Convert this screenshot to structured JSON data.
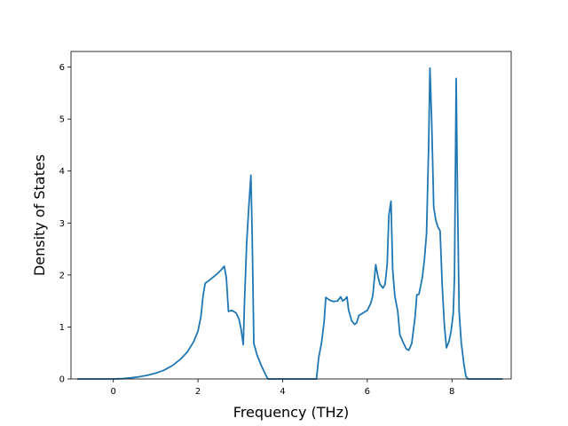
{
  "chart_data": {
    "type": "line",
    "title": "",
    "xlabel": "Frequency (THz)",
    "ylabel": "Density of States",
    "xlim": [
      -1.0,
      9.4
    ],
    "ylim": [
      0,
      6.3
    ],
    "xticks": [
      0,
      2,
      4,
      6,
      8
    ],
    "yticks": [
      0,
      1,
      2,
      3,
      4,
      5,
      6
    ],
    "grid": false,
    "legend": "none",
    "series": [
      {
        "color": "#1f77b4",
        "points": [
          [
            -0.85,
            0
          ],
          [
            0.0,
            0
          ],
          [
            0.2,
            0.005
          ],
          [
            0.4,
            0.02
          ],
          [
            0.6,
            0.04
          ],
          [
            0.8,
            0.07
          ],
          [
            1.0,
            0.11
          ],
          [
            1.2,
            0.17
          ],
          [
            1.4,
            0.26
          ],
          [
            1.6,
            0.39
          ],
          [
            1.75,
            0.52
          ],
          [
            1.9,
            0.72
          ],
          [
            2.0,
            0.92
          ],
          [
            2.07,
            1.2
          ],
          [
            2.12,
            1.6
          ],
          [
            2.17,
            1.84
          ],
          [
            2.3,
            1.92
          ],
          [
            2.45,
            2.02
          ],
          [
            2.55,
            2.1
          ],
          [
            2.62,
            2.17
          ],
          [
            2.67,
            1.95
          ],
          [
            2.72,
            1.3
          ],
          [
            2.8,
            1.32
          ],
          [
            2.9,
            1.27
          ],
          [
            2.97,
            1.15
          ],
          [
            3.02,
            0.95
          ],
          [
            3.07,
            0.66
          ],
          [
            3.1,
            1.5
          ],
          [
            3.15,
            2.6
          ],
          [
            3.2,
            3.3
          ],
          [
            3.25,
            3.92
          ],
          [
            3.28,
            2.8
          ],
          [
            3.32,
            0.68
          ],
          [
            3.4,
            0.45
          ],
          [
            3.5,
            0.25
          ],
          [
            3.6,
            0.08
          ],
          [
            3.65,
            0.0
          ],
          [
            4.8,
            0.0
          ],
          [
            4.85,
            0.4
          ],
          [
            4.92,
            0.7
          ],
          [
            4.98,
            1.1
          ],
          [
            5.02,
            1.57
          ],
          [
            5.1,
            1.52
          ],
          [
            5.2,
            1.49
          ],
          [
            5.3,
            1.5
          ],
          [
            5.37,
            1.58
          ],
          [
            5.42,
            1.5
          ],
          [
            5.47,
            1.53
          ],
          [
            5.52,
            1.58
          ],
          [
            5.56,
            1.32
          ],
          [
            5.63,
            1.12
          ],
          [
            5.7,
            1.05
          ],
          [
            5.75,
            1.08
          ],
          [
            5.8,
            1.22
          ],
          [
            5.9,
            1.27
          ],
          [
            6.0,
            1.32
          ],
          [
            6.08,
            1.45
          ],
          [
            6.13,
            1.6
          ],
          [
            6.2,
            2.2
          ],
          [
            6.25,
            1.98
          ],
          [
            6.3,
            1.82
          ],
          [
            6.37,
            1.75
          ],
          [
            6.42,
            1.82
          ],
          [
            6.47,
            2.2
          ],
          [
            6.51,
            3.15
          ],
          [
            6.56,
            3.42
          ],
          [
            6.6,
            2.1
          ],
          [
            6.65,
            1.6
          ],
          [
            6.72,
            1.3
          ],
          [
            6.77,
            0.85
          ],
          [
            6.85,
            0.7
          ],
          [
            6.92,
            0.58
          ],
          [
            6.98,
            0.55
          ],
          [
            7.05,
            0.68
          ],
          [
            7.13,
            1.2
          ],
          [
            7.17,
            1.62
          ],
          [
            7.22,
            1.63
          ],
          [
            7.3,
            1.95
          ],
          [
            7.35,
            2.3
          ],
          [
            7.4,
            2.8
          ],
          [
            7.45,
            4.5
          ],
          [
            7.48,
            5.98
          ],
          [
            7.52,
            5.0
          ],
          [
            7.57,
            3.3
          ],
          [
            7.62,
            3.05
          ],
          [
            7.67,
            2.92
          ],
          [
            7.72,
            2.85
          ],
          [
            7.77,
            1.8
          ],
          [
            7.82,
            1.05
          ],
          [
            7.87,
            0.6
          ],
          [
            7.93,
            0.72
          ],
          [
            7.98,
            0.92
          ],
          [
            8.03,
            1.25
          ],
          [
            8.06,
            1.95
          ],
          [
            8.1,
            5.78
          ],
          [
            8.13,
            3.6
          ],
          [
            8.17,
            1.3
          ],
          [
            8.22,
            0.7
          ],
          [
            8.28,
            0.3
          ],
          [
            8.33,
            0.05
          ],
          [
            8.38,
            0.0
          ],
          [
            9.2,
            0.0
          ]
        ]
      }
    ]
  }
}
